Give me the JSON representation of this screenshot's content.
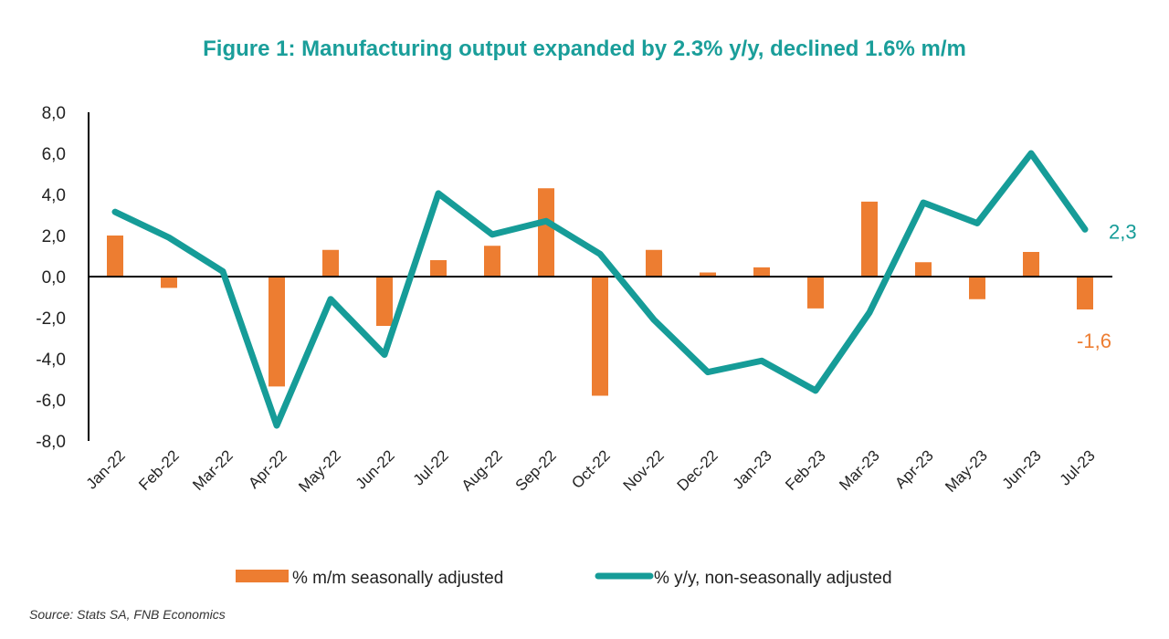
{
  "title": "Figure 1: Manufacturing output expanded by 2.3% y/y, declined 1.6% m/m",
  "source": "Source: Stats SA, FNB Economics",
  "colors": {
    "bar": "#ED7D31",
    "line": "#169C98",
    "title": "#1a9e9a"
  },
  "chart_data": {
    "type": "bar+line",
    "title": "Figure 1: Manufacturing output expanded by 2.3% y/y, declined 1.6% m/m",
    "categories": [
      "Jan-22",
      "Feb-22",
      "Mar-22",
      "Apr-22",
      "May-22",
      "Jun-22",
      "Jul-22",
      "Aug-22",
      "Sep-22",
      "Oct-22",
      "Nov-22",
      "Dec-22",
      "Jan-23",
      "Feb-23",
      "Mar-23",
      "Apr-23",
      "May-23",
      "Jun-23",
      "Jul-23"
    ],
    "series": [
      {
        "name": "% m/m seasonally adjusted",
        "type": "bar",
        "values": [
          2.0,
          -0.55,
          0.0,
          -5.35,
          1.3,
          -2.4,
          0.8,
          1.5,
          4.3,
          -5.8,
          1.3,
          0.2,
          0.45,
          -1.55,
          3.65,
          0.7,
          -1.1,
          1.2,
          -1.6
        ]
      },
      {
        "name": "% y/y, non-seasonally adjusted",
        "type": "line",
        "values": [
          3.15,
          1.9,
          0.25,
          -7.25,
          -1.1,
          -3.8,
          4.05,
          2.05,
          2.7,
          1.1,
          -2.1,
          -4.65,
          -4.1,
          -5.55,
          -1.75,
          3.6,
          2.6,
          6.0,
          2.3
        ]
      }
    ],
    "yticks": [
      "8,0",
      "6,0",
      "4,0",
      "2,0",
      "0,0",
      "-2,0",
      "-4,0",
      "-6,0",
      "-8,0"
    ],
    "ylim": [
      -8,
      8
    ],
    "data_labels": {
      "line_last": "2,3",
      "bar_last": "-1,6"
    },
    "legend": "bottom",
    "grid": false
  }
}
